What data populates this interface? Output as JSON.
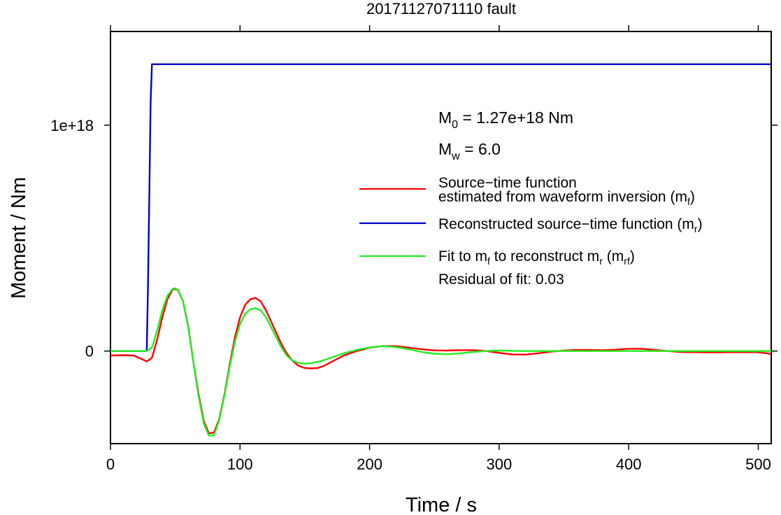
{
  "chart_data": {
    "type": "line",
    "title": "20171127071110 fault",
    "xlabel": "Time / s",
    "ylabel": "Moment / Nm",
    "xlim": [
      0,
      510
    ],
    "ylim": [
      -4.1e+17,
      1.415e+18
    ],
    "x_ticks": [
      0,
      100,
      200,
      300,
      400,
      500
    ],
    "x_tick_labels": [
      "0",
      "100",
      "200",
      "300",
      "400",
      "500"
    ],
    "y_ticks": [
      0,
      1e+18
    ],
    "y_tick_labels": [
      "0",
      "1e+18"
    ],
    "grid": false,
    "legend_position": "right",
    "annotations": {
      "m0_prefix": "M",
      "m0_sub": "0",
      "m0_value": " = 1.27e+18 Nm",
      "mw_prefix": "M",
      "mw_sub": "w",
      "mw_value": " = 6.0",
      "residual": "Residual of fit: 0.03"
    },
    "series": [
      {
        "color": "#ff0000",
        "legend_line1": "Source−time function",
        "legend_line2": "estimated from waveform inversion (m",
        "legend_sub": "f",
        "legend_suffix": ")",
        "x": [
          0,
          10,
          18,
          24,
          28,
          32,
          36,
          40,
          44,
          48,
          50,
          52,
          56,
          60,
          64,
          68,
          72,
          76,
          80,
          84,
          88,
          92,
          96,
          100,
          104,
          108,
          112,
          116,
          120,
          124,
          128,
          132,
          136,
          140,
          145,
          150,
          155,
          160,
          165,
          170,
          180,
          190,
          200,
          210,
          220,
          230,
          240,
          250,
          260,
          270,
          280,
          290,
          300,
          310,
          320,
          330,
          340,
          350,
          360,
          370,
          380,
          390,
          400,
          410,
          420,
          430,
          440,
          450,
          460,
          470,
          480,
          490,
          500,
          510
        ],
        "y": [
          -2e+16,
          -1.8e+16,
          -2e+16,
          -3.5e+16,
          -4.6e+16,
          -3e+16,
          5e+16,
          1.5e+17,
          2.3e+17,
          2.72e+17,
          2.75e+17,
          2.7e+17,
          2.2e+17,
          1.1e+17,
          -5e+16,
          -1.9e+17,
          -3.1e+17,
          -3.65e+17,
          -3.6e+17,
          -3e+17,
          -1.9e+17,
          -6e+16,
          6e+16,
          1.5e+17,
          2.05e+17,
          2.3e+17,
          2.35e+17,
          2.2e+17,
          1.8e+17,
          1.3e+17,
          8e+16,
          3e+16,
          -1e+16,
          -4e+16,
          -6.5e+16,
          -7.5e+16,
          -7.7e+16,
          -7.5e+16,
          -6.5e+16,
          -5e+16,
          -2e+16,
          0,
          1.5e+16,
          2.2e+16,
          2.2e+16,
          1.5e+16,
          8000000000000000.0,
          3000000000000000.0,
          2000000000000000.0,
          4000000000000000.0,
          4000000000000000.0,
          0,
          -8000000000000000.0,
          -1.5e+16,
          -1.6e+16,
          -1e+16,
          -3000000000000000.0,
          2000000000000000.0,
          5000000000000000.0,
          5000000000000000.0,
          4000000000000000.0,
          6000000000000000.0,
          1e+16,
          1e+16,
          5000000000000000.0,
          0,
          -4000000000000000.0,
          -5000000000000000.0,
          -6000000000000000.0,
          -6000000000000000.0,
          -5000000000000000.0,
          -5000000000000000.0,
          -5000000000000000.0,
          -1.3e+16
        ]
      },
      {
        "color": "#0000cc",
        "legend_line1": "Reconstructed source−time function (m",
        "legend_sub": "r",
        "legend_suffix": ")",
        "x": [
          0,
          28,
          29,
          30,
          31,
          32,
          510
        ],
        "y": [
          0,
          0,
          3e+17,
          7e+17,
          1.1e+18,
          1.27e+18,
          1.27e+18
        ]
      },
      {
        "color": "#22ee22",
        "legend_line1": "Fit to m",
        "legend_sub": "f",
        "legend_mid": " to reconstruct m",
        "legend_sub2": "r",
        "legend_mid2": " (m",
        "legend_sub3": "rf",
        "legend_suffix": ")",
        "x": [
          0,
          28,
          32,
          36,
          40,
          44,
          48,
          50,
          52,
          56,
          60,
          64,
          68,
          72,
          76,
          80,
          84,
          88,
          92,
          96,
          100,
          104,
          108,
          112,
          116,
          120,
          124,
          128,
          132,
          136,
          140,
          145,
          150,
          155,
          160,
          165,
          170,
          180,
          190,
          200,
          210,
          220,
          230,
          240,
          250,
          260,
          270,
          280,
          290,
          300,
          310,
          320,
          340,
          360,
          380,
          400,
          420,
          440,
          460,
          480,
          500,
          510
        ],
        "y": [
          0,
          0,
          1.5e+16,
          9e+16,
          1.8e+17,
          2.45e+17,
          2.75e+17,
          2.78e+17,
          2.72e+17,
          2.2e+17,
          1.05e+17,
          -5e+16,
          -2e+17,
          -3.2e+17,
          -3.75e+17,
          -3.72e+17,
          -3.05e+17,
          -1.95e+17,
          -7e+16,
          4e+16,
          1.2e+17,
          1.65e+17,
          1.85e+17,
          1.9e+17,
          1.8e+17,
          1.5e+17,
          1.05e+17,
          6e+16,
          1.5e+16,
          -2e+16,
          -4e+16,
          -5.3e+16,
          -5.6e+16,
          -5.4e+16,
          -4.8e+16,
          -4e+16,
          -3e+16,
          -1e+16,
          5000000000000000.0,
          1.6e+16,
          2.2e+16,
          1.8e+16,
          8000000000000000.0,
          -4000000000000000.0,
          -1.2e+16,
          -1.4e+16,
          -1e+16,
          -4000000000000000.0,
          0,
          2000000000000000.0,
          1000000000000000.0,
          0,
          0,
          0,
          0,
          0,
          0,
          0,
          0,
          0,
          0,
          0
        ]
      }
    ]
  }
}
